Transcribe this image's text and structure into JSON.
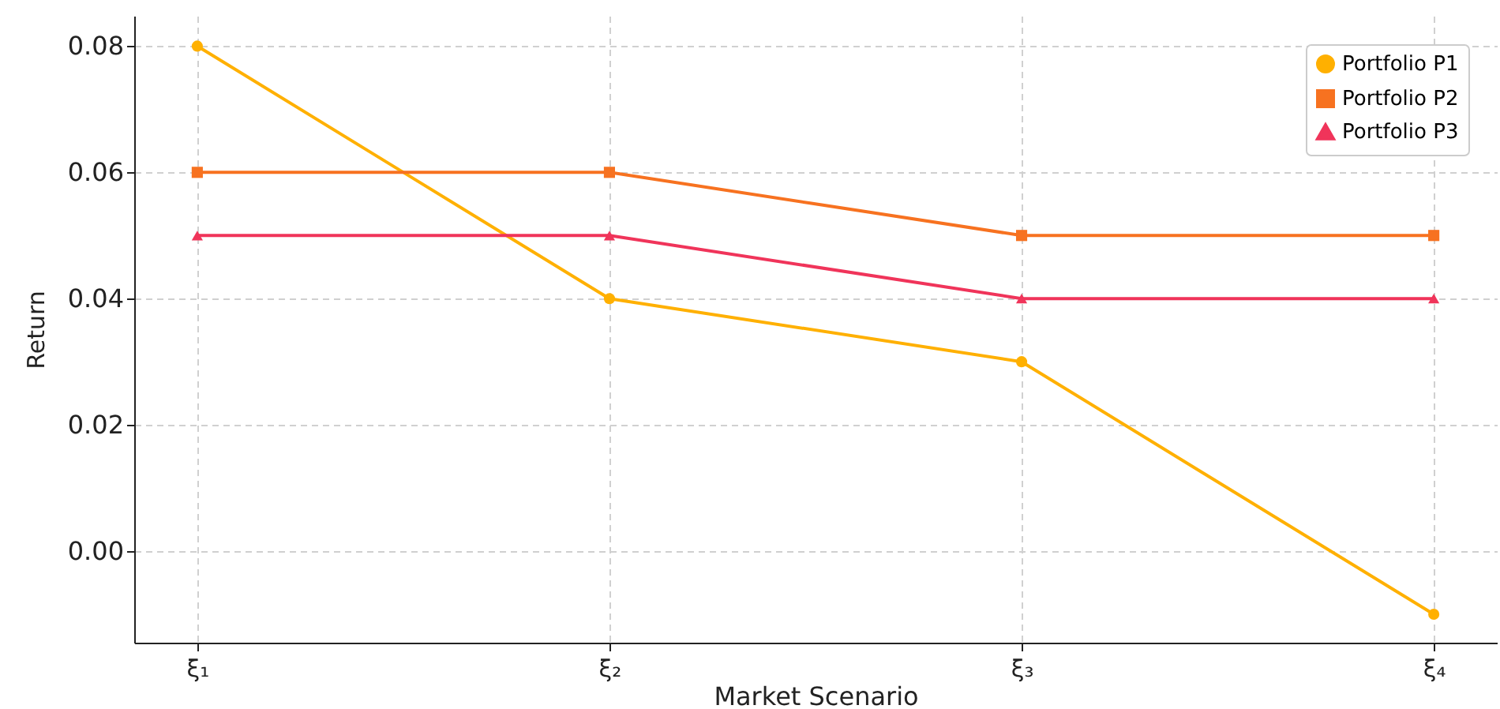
{
  "chart_data": {
    "type": "line",
    "xlabel": "Market Scenario",
    "ylabel": "Return",
    "categories": [
      "ξ₁",
      "ξ₂",
      "ξ₃",
      "ξ₄"
    ],
    "series": [
      {
        "name": "Portfolio P1",
        "color": "#ffb000",
        "marker": "circle",
        "values": [
          0.08,
          0.04,
          0.03,
          -0.01
        ]
      },
      {
        "name": "Portfolio P2",
        "color": "#f77220",
        "marker": "square",
        "values": [
          0.06,
          0.06,
          0.05,
          0.05
        ]
      },
      {
        "name": "Portfolio P3",
        "color": "#f0345a",
        "marker": "triangle",
        "values": [
          0.05,
          0.05,
          0.04,
          0.04
        ]
      }
    ],
    "ylim": [
      -0.0145,
      0.0848
    ],
    "yticks": [
      {
        "value": 0,
        "label": "0.00"
      },
      {
        "value": 0.02,
        "label": "0.02"
      },
      {
        "value": 0.04,
        "label": "0.04"
      },
      {
        "value": 0.06,
        "label": "0.06"
      },
      {
        "value": 0.08,
        "label": "0.08"
      }
    ],
    "grid": true,
    "legend": "top right"
  }
}
